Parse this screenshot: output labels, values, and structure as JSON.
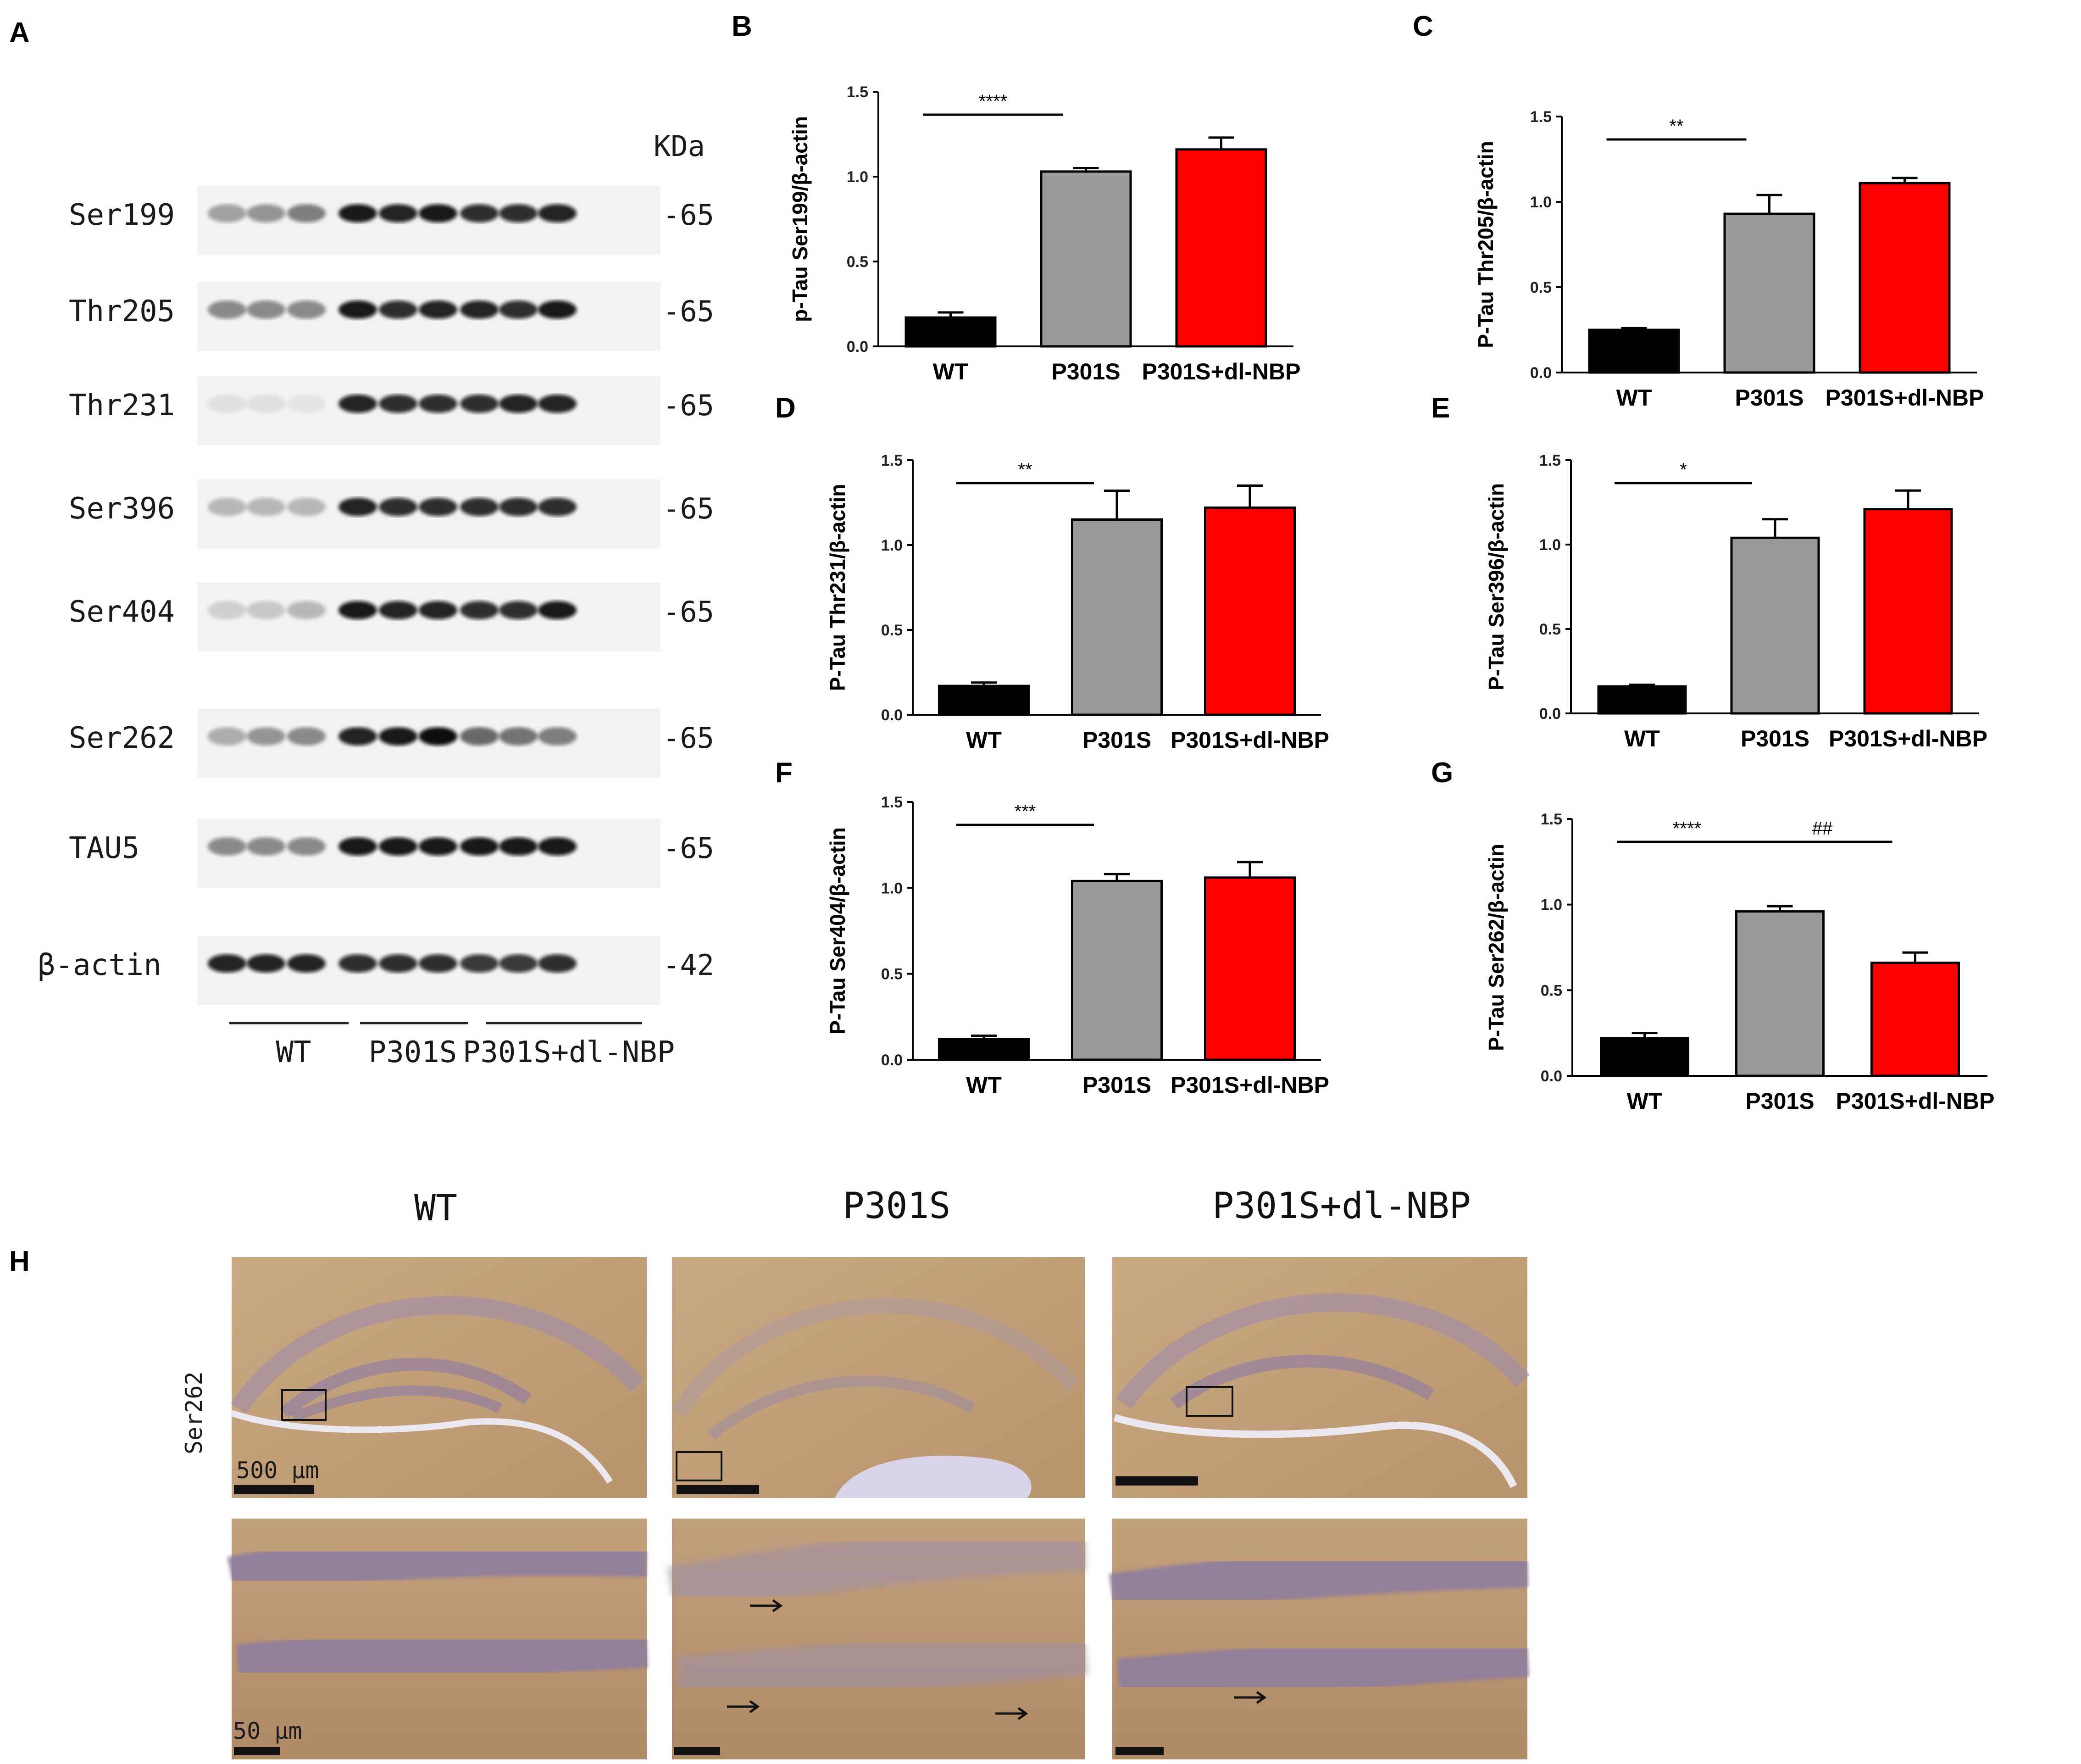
{
  "panel_letters": {
    "a": "A",
    "b": "B",
    "c": "C",
    "d": "D",
    "e": "E",
    "f": "F",
    "g": "G",
    "h": "H"
  },
  "western_blot": {
    "unit_header": "KDa",
    "rows": [
      {
        "label": "Ser199",
        "mw": "65"
      },
      {
        "label": "Thr205",
        "mw": "65"
      },
      {
        "label": "Thr231",
        "mw": "65"
      },
      {
        "label": "Ser396",
        "mw": "65"
      },
      {
        "label": "Ser404",
        "mw": "65"
      },
      {
        "label": "Ser262",
        "mw": "65"
      },
      {
        "label": "TAU5",
        "mw": "65"
      },
      {
        "label": "β-actin",
        "mw": "42"
      }
    ],
    "groups": [
      "WT",
      "P301S",
      "P301S+dl-NBP"
    ]
  },
  "colors": {
    "WT": "#000000",
    "P301S": "#999999",
    "P301S+dl-NBP": "#ff0000"
  },
  "chart_data": [
    {
      "panel": "B",
      "type": "bar",
      "categories": [
        "WT",
        "P301S",
        "P301S+dl-NBP"
      ],
      "values": [
        0.17,
        1.03,
        1.16
      ],
      "errors": [
        0.03,
        0.02,
        0.07
      ],
      "ylabel": "p-Tau Ser199/β-actin",
      "ylim": [
        0,
        1.5
      ],
      "yticks": [
        "0.0",
        "0.5",
        "1.0",
        "1.5"
      ],
      "significance": [
        {
          "label": "****",
          "from": 0,
          "to": 1
        }
      ]
    },
    {
      "panel": "C",
      "type": "bar",
      "categories": [
        "WT",
        "P301S",
        "P301S+dl-NBP"
      ],
      "values": [
        0.25,
        0.93,
        1.11
      ],
      "errors": [
        0.01,
        0.11,
        0.03
      ],
      "ylabel": "P-Tau Thr205/β-actin",
      "ylim": [
        0,
        1.5
      ],
      "yticks": [
        "0.0",
        "0.5",
        "1.0",
        "1.5"
      ],
      "significance": [
        {
          "label": "**",
          "from": 0,
          "to": 1
        }
      ]
    },
    {
      "panel": "D",
      "type": "bar",
      "categories": [
        "WT",
        "P301S",
        "P301S+dl-NBP"
      ],
      "values": [
        0.17,
        1.15,
        1.22
      ],
      "errors": [
        0.02,
        0.17,
        0.13
      ],
      "ylabel": "P-Tau Thr231/β-actin",
      "ylim": [
        0,
        1.5
      ],
      "yticks": [
        "0.0",
        "0.5",
        "1.0",
        "1.5"
      ],
      "significance": [
        {
          "label": "**",
          "from": 0,
          "to": 1
        }
      ]
    },
    {
      "panel": "E",
      "type": "bar",
      "categories": [
        "WT",
        "P301S",
        "P301S+dl-NBP"
      ],
      "values": [
        0.16,
        1.04,
        1.21
      ],
      "errors": [
        0.01,
        0.11,
        0.11
      ],
      "ylabel": "P-Tau Ser396/β-actin",
      "ylim": [
        0,
        1.5
      ],
      "yticks": [
        "0.0",
        "0.5",
        "1.0",
        "1.5"
      ],
      "significance": [
        {
          "label": "*",
          "from": 0,
          "to": 1
        }
      ]
    },
    {
      "panel": "F",
      "type": "bar",
      "categories": [
        "WT",
        "P301S",
        "P301S+dl-NBP"
      ],
      "values": [
        0.12,
        1.04,
        1.06
      ],
      "errors": [
        0.02,
        0.04,
        0.09
      ],
      "ylabel": "P-Tau Ser404/β-actin",
      "ylim": [
        0,
        1.5
      ],
      "yticks": [
        "0.0",
        "0.5",
        "1.0",
        "1.5"
      ],
      "significance": [
        {
          "label": "***",
          "from": 0,
          "to": 1
        }
      ]
    },
    {
      "panel": "G",
      "type": "bar",
      "categories": [
        "WT",
        "P301S",
        "P301S+dl-NBP"
      ],
      "values": [
        0.22,
        0.96,
        0.66
      ],
      "errors": [
        0.03,
        0.03,
        0.06
      ],
      "ylabel": "P-Tau Ser262/β-actin",
      "ylim": [
        0,
        1.5
      ],
      "yticks": [
        "0.0",
        "0.5",
        "1.0",
        "1.5"
      ],
      "significance": [
        {
          "label": "****",
          "from": 0,
          "to": 1
        },
        {
          "label": "##",
          "from": 1,
          "to": 2
        }
      ]
    }
  ],
  "histology": {
    "titles": [
      "WT",
      "P301S",
      "P301S+dl-NBP"
    ],
    "row_label": "Ser262",
    "scale_low_mag": "500 μm",
    "scale_high_mag": "50 μm"
  }
}
